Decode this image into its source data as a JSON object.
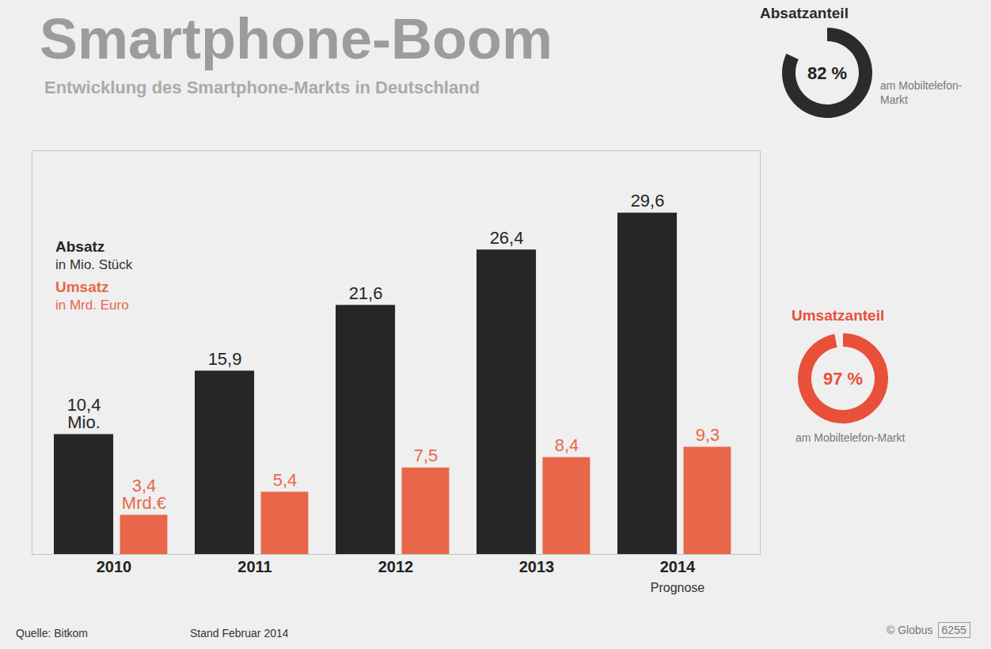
{
  "chart_data": [
    {
      "type": "bar",
      "title": "Smartphone-Boom",
      "subtitle": "Entwicklung des Smartphone-Markts in Deutschland",
      "categories": [
        "2010",
        "2011",
        "2012",
        "2013",
        "2014"
      ],
      "category_notes": [
        null,
        null,
        null,
        null,
        "Prognose"
      ],
      "series": [
        {
          "name": "Absatz",
          "unit": "in Mio. Stück",
          "color": "#262626",
          "values": [
            10.4,
            15.9,
            21.6,
            26.4,
            29.6
          ],
          "value_labels": [
            "10,4 Mio.",
            "15,9",
            "21,6",
            "26,4",
            "29,6"
          ]
        },
        {
          "name": "Umsatz",
          "unit": "in Mrd. Euro",
          "color": "#e8674a",
          "values": [
            3.4,
            5.4,
            7.5,
            8.4,
            9.3
          ],
          "value_labels": [
            "3,4 Mrd.€",
            "5,4",
            "7,5",
            "8,4",
            "9,3"
          ]
        }
      ],
      "ylim": [
        0,
        35
      ],
      "yticks": [],
      "tick_labels": "x",
      "data_labels": true,
      "legend": "top-left",
      "source": "Quelle: Bitkom",
      "note": "Stand Februar 2014",
      "credit": "© Globus",
      "code": "6255"
    },
    {
      "type": "pie",
      "title": "Absatzanteil",
      "caption": "am Mobiltelefon-Markt",
      "values": [
        82
      ],
      "value_labels": [
        "82 %"
      ],
      "color": "#2b2b2b"
    },
    {
      "type": "pie",
      "title": "Umsatzanteil",
      "caption": "am Mobiltelefon-Markt",
      "values": [
        97
      ],
      "value_labels": [
        "97 %"
      ],
      "color": "#e8503a"
    }
  ]
}
